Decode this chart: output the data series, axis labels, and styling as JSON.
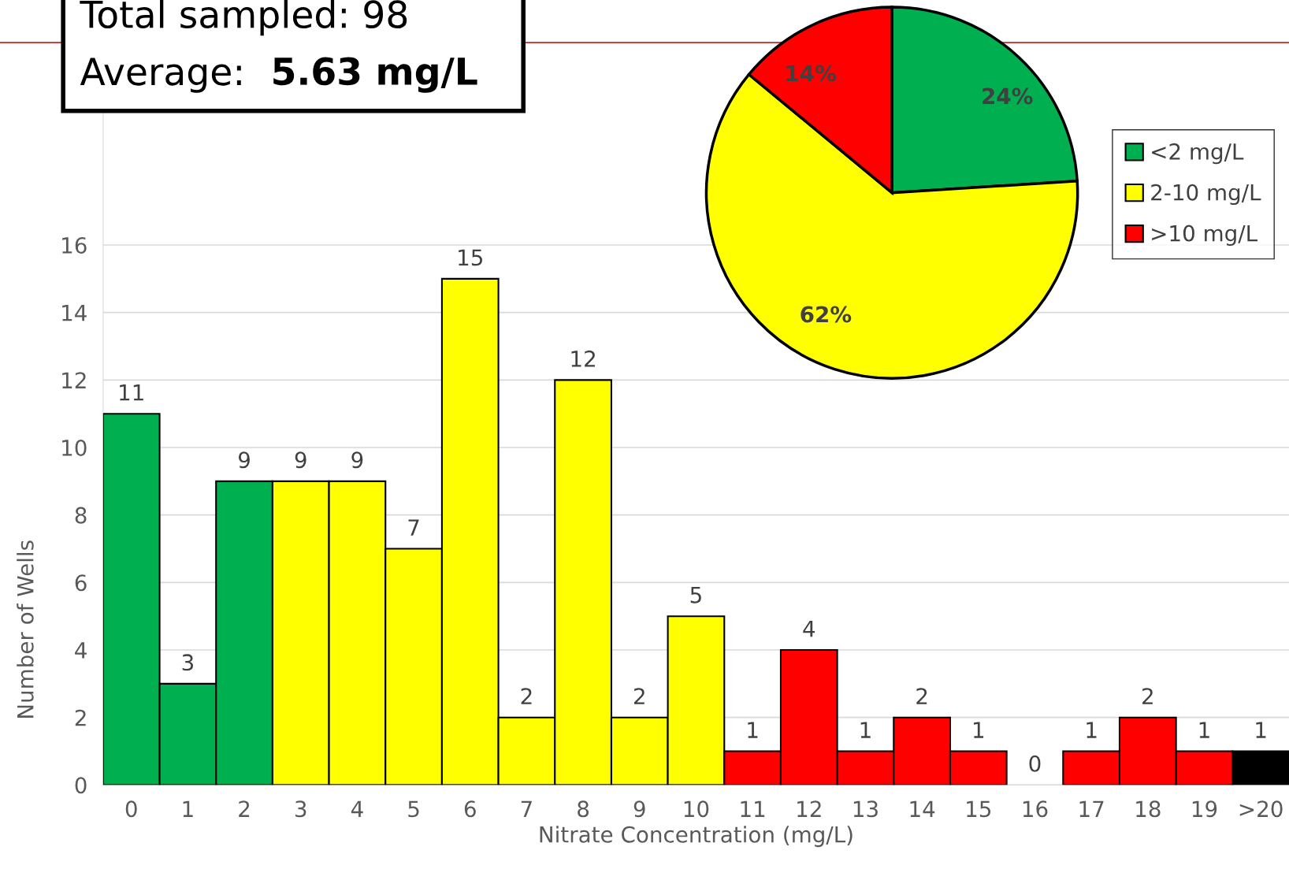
{
  "chart_data": [
    {
      "type": "bar",
      "xlabel": "Nitrate Concentration (mg/L)",
      "ylabel": "Number of Wells",
      "categories": [
        "0",
        "1",
        "2",
        "3",
        "4",
        "5",
        "6",
        "7",
        "8",
        "9",
        "10",
        "11",
        "12",
        "13",
        "14",
        "15",
        "16",
        "17",
        "18",
        "19",
        ">20"
      ],
      "values": [
        11,
        3,
        9,
        9,
        9,
        7,
        15,
        2,
        12,
        2,
        5,
        1,
        4,
        1,
        2,
        1,
        0,
        1,
        2,
        1,
        1
      ],
      "colors": [
        "#00b050",
        "#00b050",
        "#00b050",
        "#ffff00",
        "#ffff00",
        "#ffff00",
        "#ffff00",
        "#ffff00",
        "#ffff00",
        "#ffff00",
        "#ffff00",
        "#ff0000",
        "#ff0000",
        "#ff0000",
        "#ff0000",
        "#ff0000",
        "#ff0000",
        "#ff0000",
        "#ff0000",
        "#ff0000",
        "#000000"
      ],
      "ylim": [
        0,
        23
      ],
      "yticks": [
        0,
        2,
        4,
        6,
        8,
        10,
        12,
        14,
        16
      ],
      "grid": "y",
      "data_labels": true,
      "ref_lines": [
        {
          "axis": "y",
          "value": 22,
          "color": "#c00000"
        }
      ],
      "annotations": [
        "Total sampled: 98",
        "Average:",
        "5.63 mg/L"
      ]
    },
    {
      "type": "pie",
      "categories": [
        "<2 mg/L",
        "2-10 mg/L",
        ">10 mg/L"
      ],
      "values": [
        24,
        62,
        14
      ],
      "colors": [
        "#00b050",
        "#ffff00",
        "#ff0000"
      ],
      "value_labels": [
        "24%",
        "62%",
        "14%"
      ],
      "legend": "right"
    }
  ]
}
